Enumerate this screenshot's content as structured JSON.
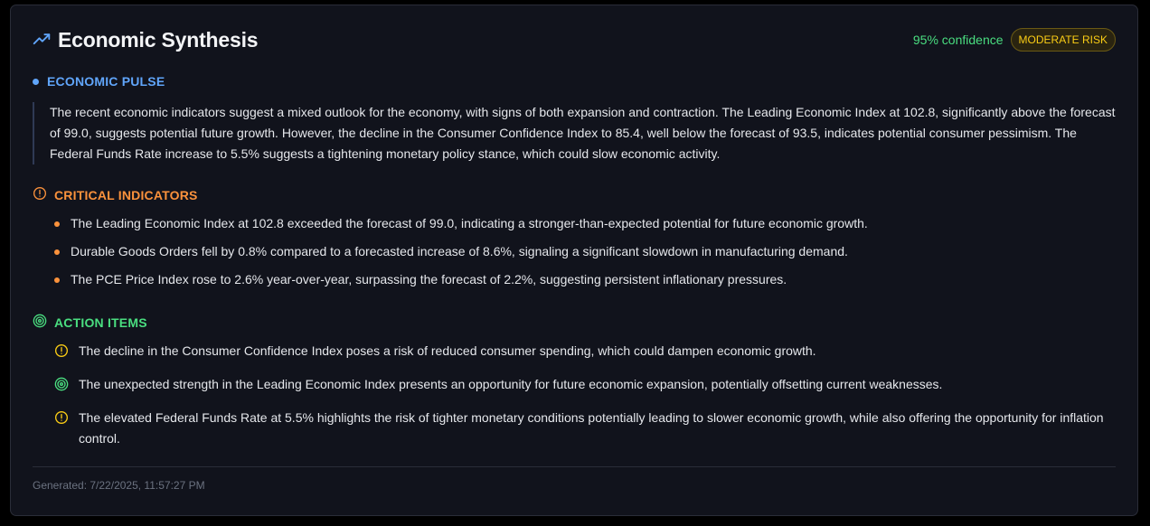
{
  "header": {
    "title": "Economic Synthesis",
    "title_icon": "trending-up-icon",
    "confidence": "95% confidence",
    "risk_badge": "MODERATE RISK"
  },
  "pulse": {
    "heading": "ECONOMIC PULSE",
    "text": "The recent economic indicators suggest a mixed outlook for the economy, with signs of both expansion and contraction. The Leading Economic Index at 102.8, significantly above the forecast of 99.0, suggests potential future growth. However, the decline in the Consumer Confidence Index to 85.4, well below the forecast of 93.5, indicates potential consumer pessimism. The Federal Funds Rate increase to 5.5% suggests a tightening monetary policy stance, which could slow economic activity."
  },
  "critical": {
    "heading": "CRITICAL INDICATORS",
    "icon": "alert-circle-icon",
    "items": [
      "The Leading Economic Index at 102.8 exceeded the forecast of 99.0, indicating a stronger-than-expected potential for future economic growth.",
      "Durable Goods Orders fell by 0.8% compared to a forecasted increase of 8.6%, signaling a significant slowdown in manufacturing demand.",
      "The PCE Price Index rose to 2.6% year-over-year, surpassing the forecast of 2.2%, suggesting persistent inflationary pressures."
    ]
  },
  "actions": {
    "heading": "ACTION ITEMS",
    "icon": "target-icon",
    "items": [
      {
        "kind": "risk",
        "icon": "alert-circle-icon",
        "text": "The decline in the Consumer Confidence Index poses a risk of reduced consumer spending, which could dampen economic growth."
      },
      {
        "kind": "opportunity",
        "icon": "target-icon",
        "text": "The unexpected strength in the Leading Economic Index presents an opportunity for future economic expansion, potentially offsetting current weaknesses."
      },
      {
        "kind": "risk",
        "icon": "alert-circle-icon",
        "text": "The elevated Federal Funds Rate at 5.5% highlights the risk of tighter monetary conditions potentially leading to slower economic growth, while also offering the opportunity for inflation control."
      }
    ]
  },
  "footer": {
    "generated": "Generated: 7/22/2025, 11:57:27 PM"
  },
  "colors": {
    "background": "#11131c",
    "pulse": "#60a5fa",
    "critical": "#fb923c",
    "actions": "#4ade80",
    "risk": "#facc15"
  }
}
